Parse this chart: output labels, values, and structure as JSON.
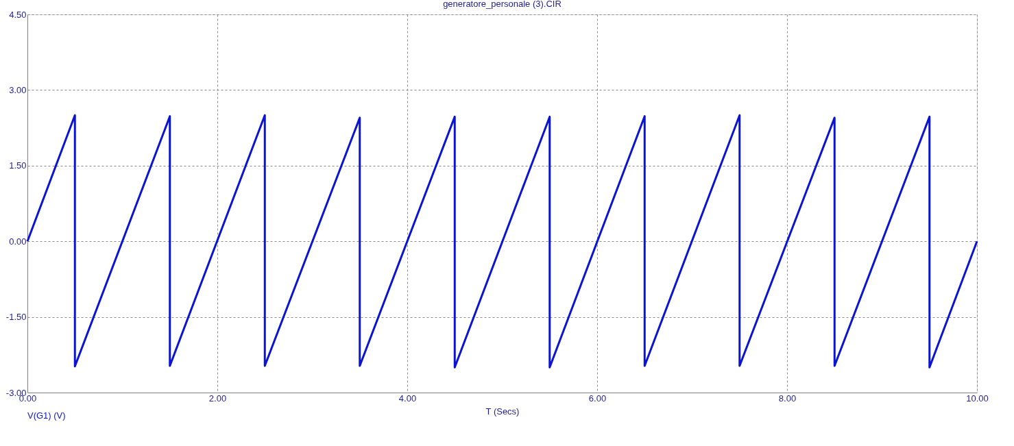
{
  "chart_data": {
    "type": "line",
    "title": "generatore_personale (3).CIR",
    "xlabel": "T (Secs)",
    "x": [
      0,
      0.5,
      0.5,
      1.5,
      1.5,
      2.5,
      2.5,
      3.5,
      3.5,
      4.5,
      4.5,
      5.5,
      5.5,
      6.5,
      6.5,
      7.5,
      7.5,
      8.5,
      8.5,
      9.5,
      9.5,
      10
    ],
    "series": [
      {
        "name": "V(G1) (V)",
        "color": "#0a14d2",
        "values": [
          0,
          2.5,
          -2.48,
          2.48,
          -2.47,
          2.5,
          -2.47,
          2.45,
          -2.47,
          2.47,
          -2.5,
          2.47,
          -2.5,
          2.48,
          -2.47,
          2.5,
          -2.47,
          2.45,
          -2.47,
          2.47,
          -2.5,
          0
        ]
      }
    ],
    "xlim": [
      0,
      10
    ],
    "ylim": [
      -3,
      4.5
    ],
    "xticks": [
      {
        "value": 0,
        "label": "0.00"
      },
      {
        "value": 2,
        "label": "2.00"
      },
      {
        "value": 4,
        "label": "4.00"
      },
      {
        "value": 6,
        "label": "6.00"
      },
      {
        "value": 8,
        "label": "8.00"
      },
      {
        "value": 10,
        "label": "10.00"
      }
    ],
    "yticks": [
      {
        "value": -3,
        "label": "-3.00"
      },
      {
        "value": -1.5,
        "label": "-1.50"
      },
      {
        "value": 0,
        "label": "0.00"
      },
      {
        "value": 1.5,
        "label": "1.50"
      },
      {
        "value": 3,
        "label": "3.00"
      },
      {
        "value": 4.5,
        "label": "4.50"
      }
    ],
    "grid": true,
    "legend": "bottom left",
    "line_style": "solid",
    "marker": "none"
  }
}
